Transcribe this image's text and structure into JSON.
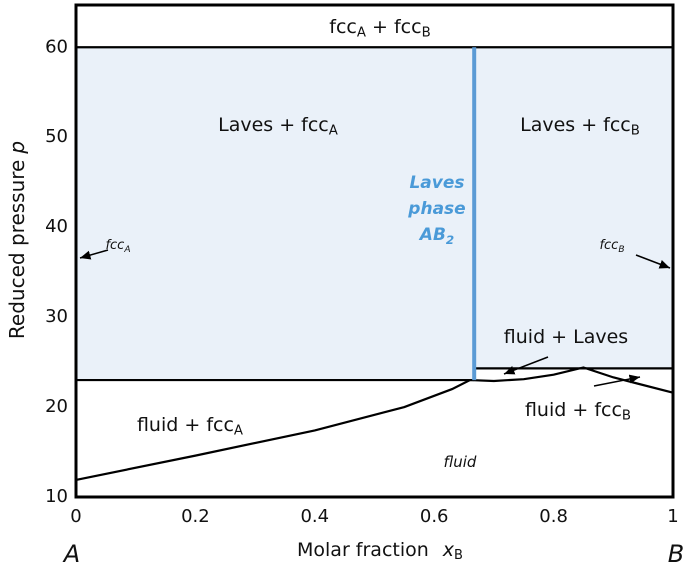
{
  "chart_data": {
    "type": "phase-diagram",
    "xlim": [
      0,
      1
    ],
    "ylim": [
      10,
      64.7
    ],
    "xticks": [
      0,
      0.2,
      0.4,
      0.6,
      0.8,
      1
    ],
    "yticks": [
      10,
      20,
      30,
      40,
      50,
      60
    ],
    "x_label": {
      "text": "Molar fraction",
      "var": "x",
      "sub": "B"
    },
    "y_label": {
      "text": "Reduced pressure",
      "var": "p"
    },
    "x_end_labels": [
      "A",
      "B"
    ],
    "shaded_region": {
      "color": "#eaf1f9",
      "x": [
        0,
        0.667,
        0.667,
        1,
        1,
        0
      ],
      "y": [
        23,
        23,
        24.3,
        24.3,
        60,
        60
      ]
    },
    "lines": [
      {
        "name": "fcc-boundary",
        "color": "#000000",
        "x": [
          0,
          1
        ],
        "y": [
          60,
          60
        ]
      },
      {
        "name": "eutectic-a",
        "color": "#000000",
        "x": [
          0,
          0.667
        ],
        "y": [
          23,
          23
        ]
      },
      {
        "name": "laves-b",
        "color": "#000000",
        "x": [
          0.667,
          1
        ],
        "y": [
          24.3,
          24.3
        ]
      },
      {
        "name": "liquidus-a",
        "color": "#000000",
        "x": [
          0,
          0.2,
          0.4,
          0.55,
          0.63,
          0.66
        ],
        "y": [
          11.9,
          14.6,
          17.4,
          20.0,
          22.0,
          23.0
        ]
      },
      {
        "name": "liquidus-b",
        "color": "#000000",
        "x": [
          0.66,
          0.7,
          0.75,
          0.8,
          0.85,
          0.9,
          1
        ],
        "y": [
          23.0,
          22.9,
          23.1,
          23.6,
          24.4,
          23.3,
          21.6
        ]
      },
      {
        "name": "laves-line",
        "color": "#5b9bd5",
        "x": [
          0.667,
          0.667
        ],
        "y": [
          23,
          60
        ]
      }
    ],
    "region_labels": [
      [
        "fcc",
        "A",
        " + fcc",
        "B"
      ],
      [
        "Laves + fcc",
        "A"
      ],
      [
        "Laves + fcc",
        "B"
      ],
      [
        "fluid + Laves"
      ],
      [
        "fluid + fcc",
        "B"
      ],
      [
        "fluid + fcc",
        "A"
      ],
      [
        "fluid"
      ],
      [
        "fcc",
        "A"
      ],
      [
        "fcc",
        "B"
      ]
    ],
    "laves_phase_label": {
      "color": "#4a9ad8",
      "lines": [
        [
          "Laves"
        ],
        [
          "phase"
        ],
        [
          "AB",
          "2"
        ]
      ]
    }
  }
}
